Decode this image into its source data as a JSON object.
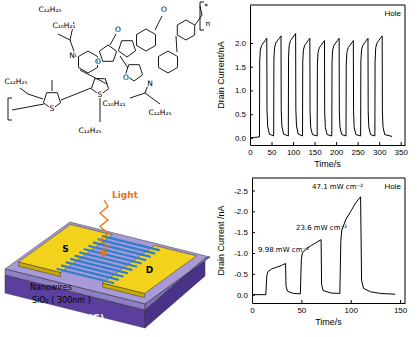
{
  "structure": {
    "labels": [
      "C₁₂H₂₅",
      "C₁₀H₂₁",
      "N",
      "O",
      "O",
      "O",
      "O",
      "N",
      "C₁₀H₂₁",
      "C₁₂H₂₅",
      "C₁₂H₂₅",
      "S",
      "S",
      "C₁₂H₂₅",
      "n",
      "*"
    ]
  },
  "device": {
    "labels": {
      "light": "Light",
      "source": "S",
      "drain": "D",
      "nanowires": "Nanowires",
      "oxide": "SiO₂ ( 300nm )",
      "gate": "Doped Si (G)"
    }
  },
  "chart_data": [
    {
      "type": "line",
      "xlabel": "Time/s",
      "ylabel": "Drain Current/nA",
      "legend": "upper right",
      "xlim": [
        0,
        360
      ],
      "xticks": [
        0,
        50,
        100,
        150,
        200,
        250,
        300,
        350
      ],
      "ylim": [
        -0.15,
        2.8
      ],
      "yticks": [
        {
          "value": 0,
          "label": "0.0"
        },
        0.5,
        {
          "value": 1,
          "label": "1.0"
        },
        1.5,
        {
          "value": 2,
          "label": "2.0"
        }
      ],
      "x": [
        0,
        10,
        22,
        22.5,
        24,
        27,
        31,
        35,
        39,
        39.5,
        41,
        45,
        55,
        55.5,
        57,
        60,
        64,
        68,
        72,
        72.5,
        74,
        78,
        89,
        89.5,
        91,
        94,
        98,
        102,
        106,
        106.5,
        108,
        112,
        122,
        122.5,
        124,
        127,
        131,
        135,
        139,
        139.5,
        141,
        145,
        156,
        156.5,
        158,
        161,
        165,
        169,
        173,
        173.5,
        175,
        179,
        190,
        190.5,
        192,
        195,
        199,
        203,
        207,
        207.5,
        209,
        213,
        223,
        223.5,
        225,
        228,
        232,
        236,
        240,
        240.5,
        242,
        246,
        257,
        257.5,
        259,
        262,
        266,
        270,
        274,
        274.5,
        276,
        280,
        290,
        290.5,
        292,
        295,
        299,
        303,
        307,
        307.5,
        309,
        313,
        330
      ],
      "series": [
        {
          "name": "Hole",
          "color": "#000000",
          "values": [
            0,
            0.01,
            0.02,
            1.6,
            1.85,
            1.95,
            2.0,
            2.05,
            2.1,
            0.6,
            0.25,
            0.08,
            0.04,
            1.65,
            1.9,
            2.0,
            2.05,
            2.1,
            2.15,
            0.6,
            0.25,
            0.08,
            0.04,
            1.7,
            1.95,
            2.05,
            2.1,
            2.15,
            2.2,
            0.6,
            0.25,
            0.08,
            0.04,
            1.6,
            1.85,
            1.95,
            2.0,
            2.05,
            2.1,
            0.55,
            0.22,
            0.07,
            0.04,
            1.55,
            1.8,
            1.9,
            1.95,
            2.0,
            2.05,
            0.55,
            0.22,
            0.07,
            0.04,
            1.6,
            1.85,
            1.95,
            2.0,
            2.05,
            2.1,
            0.55,
            0.22,
            0.07,
            0.04,
            1.55,
            1.8,
            1.9,
            1.95,
            2.0,
            2.05,
            0.55,
            0.22,
            0.07,
            0.04,
            1.6,
            1.85,
            1.95,
            2.0,
            2.05,
            2.1,
            0.55,
            0.22,
            0.07,
            0.04,
            1.6,
            1.9,
            2.0,
            2.05,
            2.1,
            2.15,
            0.55,
            0.22,
            0.07,
            0.03
          ]
        }
      ]
    },
    {
      "type": "line",
      "xlabel": "Time/s",
      "ylabel": "Drain Current /nA",
      "legend": "upper right",
      "annotations": [
        "9.98 mW cm⁻²",
        "23.6 mW cm⁻²",
        "47.1 mW cm⁻²"
      ],
      "xlim": [
        0,
        155
      ],
      "xticks": [
        0,
        50,
        100,
        150
      ],
      "ylim": [
        0.2,
        -2.8
      ],
      "yticks": [
        {
          "value": 0,
          "label": "0.0"
        },
        -0.5,
        {
          "value": -1,
          "label": "-1.0"
        },
        -1.5,
        {
          "value": -2,
          "label": "-2.0"
        },
        -2.5
      ],
      "x": [
        0,
        14,
        15,
        16,
        20,
        25,
        30,
        34,
        34.5,
        36,
        42,
        49,
        50,
        51,
        55,
        60,
        65,
        70,
        70.5,
        72,
        80,
        89,
        90,
        91,
        95,
        100,
        105,
        110,
        111,
        113,
        120,
        130,
        145
      ],
      "series": [
        {
          "name": "Hole",
          "color": "#000000",
          "values": [
            0,
            0,
            -0.45,
            -0.55,
            -0.62,
            -0.66,
            -0.7,
            -0.75,
            -0.2,
            -0.08,
            -0.03,
            -0.02,
            -0.85,
            -1.0,
            -1.1,
            -1.18,
            -1.25,
            -1.32,
            -0.25,
            -0.1,
            -0.04,
            -0.03,
            -1.3,
            -1.55,
            -1.8,
            -2.0,
            -2.2,
            -2.35,
            -0.35,
            -0.15,
            -0.07,
            -0.03,
            -0.01
          ]
        }
      ]
    }
  ]
}
